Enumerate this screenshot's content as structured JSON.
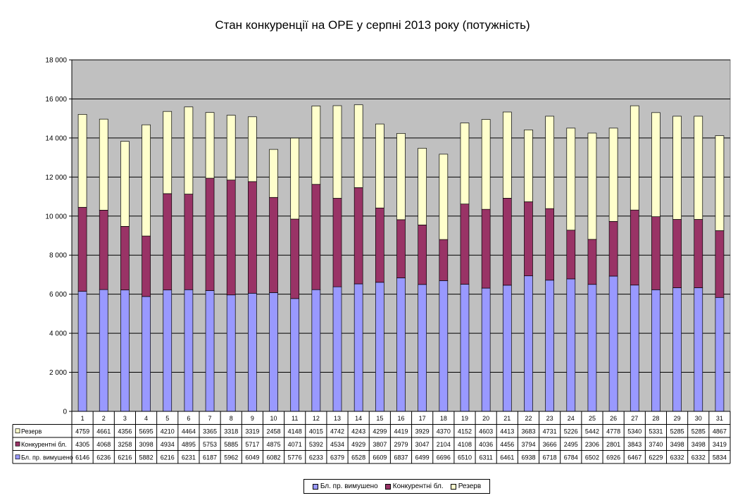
{
  "chart_data": {
    "type": "bar",
    "stacked": true,
    "title": "Стан конкуренції на ОРЕ  у серпні 2013 року (потужність)",
    "categories": [
      "1",
      "2",
      "3",
      "4",
      "5",
      "6",
      "7",
      "8",
      "9",
      "10",
      "11",
      "12",
      "13",
      "14",
      "15",
      "16",
      "17",
      "18",
      "19",
      "20",
      "21",
      "22",
      "23",
      "24",
      "25",
      "26",
      "27",
      "28",
      "29",
      "30",
      "31"
    ],
    "ylim": [
      0,
      18000
    ],
    "yticks": [
      0,
      2000,
      4000,
      6000,
      8000,
      10000,
      12000,
      14000,
      16000,
      18000
    ],
    "ytick_labels": [
      "0",
      "2 000",
      "4 000",
      "6 000",
      "8 000",
      "10 000",
      "12 000",
      "14 000",
      "16 000",
      "18 000"
    ],
    "grid": true,
    "legend_position": "bottom",
    "series": [
      {
        "name": "Бл. пр. вимушено",
        "color": "#9999ff",
        "values": [
          6146,
          6236,
          6216,
          5882,
          6216,
          6231,
          6187,
          5962,
          6049,
          6082,
          5776,
          6233,
          6379,
          6528,
          6609,
          6837,
          6499,
          6696,
          6510,
          6311,
          6461,
          6938,
          6718,
          6784,
          6502,
          6926,
          6467,
          6229,
          6332,
          6332,
          5834
        ]
      },
      {
        "name": "Конкурентні бл.",
        "color": "#993366",
        "values": [
          4305,
          4068,
          3258,
          3098,
          4934,
          4895,
          5753,
          5885,
          5717,
          4875,
          4071,
          5392,
          4534,
          4929,
          3807,
          2979,
          3047,
          2104,
          4108,
          4036,
          4456,
          3794,
          3666,
          2495,
          2306,
          2801,
          3843,
          3740,
          3498,
          3498,
          3419
        ]
      },
      {
        "name": "Резерв",
        "color": "#ffffcc",
        "values": [
          4759,
          4661,
          4356,
          5695,
          4210,
          4464,
          3365,
          3318,
          3319,
          2458,
          4148,
          4015,
          4742,
          4243,
          4299,
          4419,
          3929,
          4370,
          4152,
          4603,
          4413,
          3683,
          4731,
          5226,
          5442,
          4778,
          5340,
          5331,
          5285,
          5285,
          4867
        ]
      }
    ],
    "table_rows": [
      {
        "label": "Резерв",
        "series_index": 2,
        "color": "#ffffcc"
      },
      {
        "label": "Конкурентні бл.",
        "series_index": 1,
        "color": "#993366"
      },
      {
        "label": "Бл. пр. вимушено",
        "series_index": 0,
        "color": "#9999ff"
      }
    ],
    "legend_order": [
      0,
      1,
      2
    ]
  }
}
